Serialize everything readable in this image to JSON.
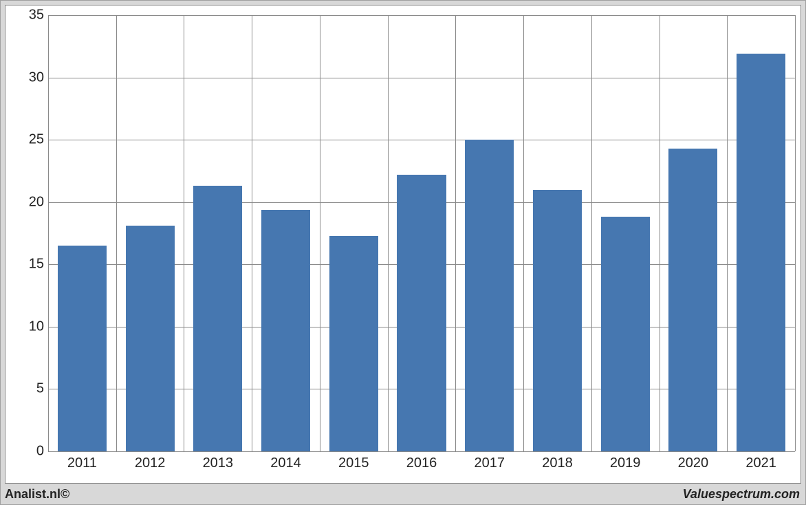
{
  "chart": {
    "type": "bar",
    "categories": [
      "2011",
      "2012",
      "2013",
      "2014",
      "2015",
      "2016",
      "2017",
      "2018",
      "2019",
      "2020",
      "2021"
    ],
    "values": [
      16.5,
      18.1,
      21.3,
      19.4,
      17.3,
      22.2,
      25.0,
      21.0,
      18.8,
      24.3,
      31.9
    ],
    "bar_color": "#4677b0",
    "background_color": "#ffffff",
    "outer_background": "#d8d8d8",
    "grid_color": "#8a8a8a",
    "y_min": 0,
    "y_max": 35,
    "y_ticks": [
      0,
      5,
      10,
      15,
      20,
      25,
      30,
      35
    ],
    "axis_fontsize": 20,
    "footer_fontsize": 18,
    "bar_width_ratio": 0.72
  },
  "footer": {
    "left": "Analist.nl©",
    "right": "Valuespectrum.com"
  }
}
